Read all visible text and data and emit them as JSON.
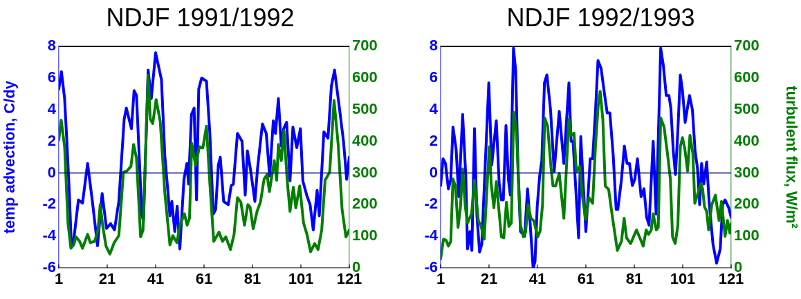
{
  "chart_data": [
    {
      "type": "line",
      "title": "NDJF 1991/1992",
      "ylabel": "temp advection, C/dy",
      "xlim": [
        1,
        121
      ],
      "xticks": [
        1,
        21,
        41,
        61,
        81,
        101,
        121
      ],
      "ylim": [
        -6,
        8
      ],
      "yticks": [
        -6,
        -4,
        -2,
        0,
        2,
        4,
        6,
        8
      ],
      "y2lim": [
        0,
        700
      ],
      "y2ticks": [
        0,
        100,
        200,
        300,
        400,
        500,
        600,
        700
      ],
      "ref_lines": [
        {
          "axis": "y",
          "value": 0,
          "color": "#000080"
        }
      ],
      "series": [
        {
          "color": "#0000ff",
          "x": [
            1,
            2.1,
            3.4,
            4.3,
            5.3,
            6.2,
            7.2,
            9.1,
            10.8,
            12.9,
            14.8,
            17,
            18.9,
            20.7,
            22.4,
            24,
            25.8,
            28,
            28.9,
            31,
            32.1,
            33.1,
            35.3,
            36,
            37.9,
            39.2,
            41,
            43.4,
            44.8,
            46.9,
            47.7,
            48.9,
            49.9,
            51,
            52.7,
            53.9,
            54.6,
            55.8,
            56.9,
            57.9,
            58.8,
            60,
            62,
            63.4,
            64.8,
            65.8,
            66.9,
            67.7,
            69.1,
            71,
            72.2,
            73.1,
            74.8,
            76.7,
            78,
            78.9,
            80.2,
            82,
            83.1,
            85.1,
            86.7,
            88.1,
            89.6,
            90.5,
            91.7,
            92.9,
            93.9,
            95.1,
            96.5,
            97.7,
            99.3,
            100.8,
            101.8,
            103.4,
            104.8,
            106.1,
            107.7,
            108.6,
            110.5,
            112.2,
            113.6,
            114.9,
            117,
            118.6,
            119.9,
            121
          ],
          "values": [
            5.3,
            6.4,
            4.7,
            2.1,
            -1.1,
            -4.6,
            -4.2,
            -1.7,
            -1.9,
            0.6,
            -1.7,
            -4.6,
            -1.3,
            -3.5,
            -3.2,
            -3.6,
            -1.8,
            3.4,
            4.1,
            2.8,
            5.2,
            4.9,
            -2.7,
            -3,
            6.5,
            4.7,
            7.6,
            5.9,
            1.1,
            -2.7,
            -1.8,
            -3.7,
            -2.1,
            -4.8,
            -0.4,
            0.6,
            -0.7,
            3.7,
            4.1,
            -1.7,
            5.3,
            6,
            5.8,
            2.5,
            -2.6,
            -2.3,
            0.5,
            1,
            -1.8,
            -2,
            -0.8,
            -0.7,
            2.5,
            2,
            -1.4,
            1.4,
            0.2,
            -1.8,
            0.3,
            3.1,
            2.5,
            -0.2,
            3.3,
            2.5,
            4.7,
            1.7,
            2.8,
            3.2,
            -0.5,
            2.9,
            1.6,
            2.8,
            -0.5,
            -1.4,
            -2,
            -3.6,
            -1.1,
            -2.7,
            2.6,
            2.2,
            5.5,
            6.5,
            4,
            2,
            -0.4,
            1
          ]
        },
        {
          "color": "#007f00",
          "axis": "y2",
          "x": [
            1,
            2,
            3.4,
            4.8,
            6,
            7.2,
            8.1,
            9.6,
            10.8,
            12.9,
            14,
            15.8,
            17.2,
            18.1,
            19.1,
            20.5,
            22.1,
            23.9,
            25.8,
            27.7,
            29.1,
            30.8,
            31.9,
            33.1,
            34.8,
            35.8,
            37.9,
            38.8,
            39.8,
            41.2,
            42.9,
            44.8,
            46.9,
            48.1,
            49.8,
            51,
            52.9,
            54,
            55,
            55.9,
            57.5,
            59.1,
            60.5,
            62,
            63.4,
            65,
            67.2,
            68.6,
            70,
            71.9,
            73.4,
            74.8,
            76.2,
            77.7,
            79.1,
            80,
            81.3,
            82.9,
            84.3,
            85.8,
            87,
            88,
            90,
            91,
            91.7,
            92.9,
            94,
            95.3,
            96.5,
            97.9,
            98.9,
            100.5,
            102.1,
            103.5,
            105,
            106.7,
            108.1,
            109.6,
            111,
            112.9,
            114.7,
            116.4,
            118,
            119.6,
            121
          ],
          "values": [
            405,
            467,
            383,
            142,
            62,
            73,
            98,
            84,
            62,
            106,
            80,
            84,
            120,
            200,
            135,
            69,
            44,
            80,
            102,
            303,
            306,
            321,
            390,
            346,
            98,
            120,
            609,
            470,
            456,
            532,
            463,
            237,
            73,
            102,
            80,
            135,
            171,
            135,
            157,
            394,
            324,
            383,
            379,
            448,
            266,
            84,
            113,
            84,
            98,
            58,
            106,
            222,
            208,
            135,
            200,
            193,
            124,
            179,
            208,
            281,
            295,
            241,
            339,
            277,
            390,
            339,
            434,
            281,
            179,
            255,
            190,
            259,
            142,
            106,
            51,
            77,
            58,
            120,
            277,
            303,
            529,
            390,
            186,
            98,
            120
          ]
        }
      ]
    },
    {
      "type": "line",
      "title": "NDJF 1992/1993",
      "y2label": "turbulent flux, W/m²",
      "xlim": [
        1,
        121
      ],
      "xticks": [
        1,
        21,
        41,
        61,
        81,
        101,
        121
      ],
      "ylim": [
        -6,
        8
      ],
      "yticks": [
        -6,
        -4,
        -2,
        0,
        2,
        4,
        6,
        8
      ],
      "y2lim": [
        0,
        700
      ],
      "y2ticks": [
        0,
        100,
        200,
        300,
        400,
        500,
        600,
        700
      ],
      "ref_lines": [
        {
          "axis": "y",
          "value": 0,
          "color": "#000080"
        }
      ],
      "series": [
        {
          "color": "#0000ff",
          "x": [
            1,
            2,
            3,
            4.2,
            5.2,
            6.1,
            7.4,
            8.5,
            10.1,
            11.4,
            12.1,
            13.1,
            13.9,
            15,
            16,
            17.1,
            18,
            20.9,
            22.1,
            24,
            25.2,
            26.1,
            26.9,
            28,
            29,
            29.8,
            31.1,
            32,
            33,
            34,
            35.7,
            36.9,
            37.9,
            39.2,
            40,
            40.9,
            41.9,
            42.8,
            43.9,
            44.9,
            46.4,
            47.9,
            50,
            51.9,
            54,
            54.9,
            55.7,
            56.6,
            58,
            58.9,
            60,
            61,
            62.8,
            63.8,
            65,
            66,
            67.3,
            68.5,
            69.8,
            70.9,
            72.3,
            73.5,
            74.2,
            75.7,
            76.9,
            78,
            79,
            80.2,
            81.2,
            82.3,
            83.8,
            85,
            86.1,
            87.1,
            88.8,
            90,
            90.9,
            91.9,
            93,
            94.2,
            95.3,
            96.1,
            97.1,
            98,
            99,
            100,
            100.9,
            102,
            103.8,
            105,
            106.1,
            107.1,
            108,
            108.8,
            109.7,
            110.9,
            111.9,
            113.5,
            115,
            116.5,
            117.5,
            118.5,
            120,
            121
          ],
          "values": [
            -0.8,
            0.9,
            0.6,
            -1,
            -0.4,
            2.9,
            1.5,
            -1.5,
            3.7,
            -0.2,
            -4.8,
            -3.7,
            -4.9,
            2.8,
            -2.7,
            -5,
            -4.5,
            5.7,
            0.5,
            3.3,
            -0.7,
            -1.7,
            -1.7,
            3,
            -0.4,
            -1.4,
            7.9,
            6.5,
            0.1,
            -3.7,
            -4,
            -1,
            -3,
            -6,
            -5.6,
            -2.1,
            -0.2,
            0.8,
            5.7,
            6.2,
            4,
            0.1,
            3.9,
            0.6,
            5.7,
            2,
            2,
            -0.4,
            -4.1,
            2.3,
            -1,
            -3.7,
            0.9,
            0.9,
            4,
            7.1,
            6.6,
            5.2,
            3.8,
            3.8,
            1.1,
            -2.3,
            -2.3,
            -0.4,
            1.7,
            0.6,
            0.6,
            -0.8,
            -0.4,
            0.9,
            -1.5,
            -1,
            -2.8,
            -3.3,
            2,
            -2.6,
            2.1,
            7.9,
            6.8,
            4.9,
            4.9,
            4.1,
            1.4,
            -0.1,
            2.7,
            6.2,
            5.2,
            3.2,
            4.9,
            4,
            1.4,
            0.3,
            -2,
            0.6,
            -0.7,
            0.7,
            -1.8,
            -4.5,
            -5.7,
            -4.8,
            -2,
            -1.7,
            -2.2,
            -2.8
          ]
        },
        {
          "color": "#007f00",
          "axis": "y2",
          "x": [
            1,
            2.2,
            3.3,
            4.2,
            5.2,
            6.1,
            7.1,
            8.2,
            9.2,
            10.1,
            11.2,
            12.1,
            13.8,
            15,
            16.6,
            17.6,
            19,
            21.1,
            21.9,
            23,
            24,
            26.1,
            27.1,
            28.2,
            29.2,
            30.2,
            31.2,
            32.3,
            34,
            35.2,
            36.1,
            37.1,
            38.3,
            39.5,
            41.1,
            42.1,
            43.1,
            44,
            45.2,
            46.6,
            47.4,
            48.5,
            50,
            51.9,
            54,
            54.9,
            56.1,
            57.1,
            58.5,
            59.5,
            60.9,
            62.3,
            63.8,
            65,
            66.1,
            66.9,
            68,
            69,
            70.4,
            71.9,
            74,
            75.7,
            76.8,
            77.8,
            79.5,
            81.9,
            83.5,
            84.7,
            85.9,
            86.9,
            88,
            88.8,
            90.1,
            90.9,
            91.9,
            93.3,
            94.7,
            95.9,
            96.8,
            97.9,
            99,
            100,
            100.9,
            101.9,
            103,
            104,
            105.2,
            106,
            107.3,
            108.5,
            109.2,
            110,
            110.9,
            111.7,
            113,
            114.5,
            116,
            117,
            118.5,
            119.5,
            120.5,
            121
          ],
          "values": [
            29,
            91,
            87,
            69,
            84,
            281,
            259,
            128,
            193,
            313,
            193,
            142,
            171,
            277,
            149,
            135,
            91,
            383,
            266,
            190,
            273,
            98,
            95,
            208,
            131,
            142,
            492,
            434,
            135,
            98,
            113,
            200,
            157,
            149,
            98,
            117,
            200,
            474,
            448,
            317,
            259,
            259,
            299,
            157,
            470,
            419,
            426,
            303,
            321,
            230,
            153,
            222,
            204,
            390,
            514,
            558,
            470,
            259,
            248,
            164,
            55,
            84,
            157,
            95,
            77,
            120,
            91,
            69,
            120,
            106,
            120,
            171,
            120,
            128,
            474,
            445,
            361,
            281,
            98,
            77,
            135,
            383,
            412,
            375,
            306,
            419,
            361,
            204,
            237,
            266,
            251,
            193,
            179,
            120,
            200,
            230,
            150,
            210,
            100,
            150,
            110,
            140
          ]
        }
      ]
    }
  ]
}
